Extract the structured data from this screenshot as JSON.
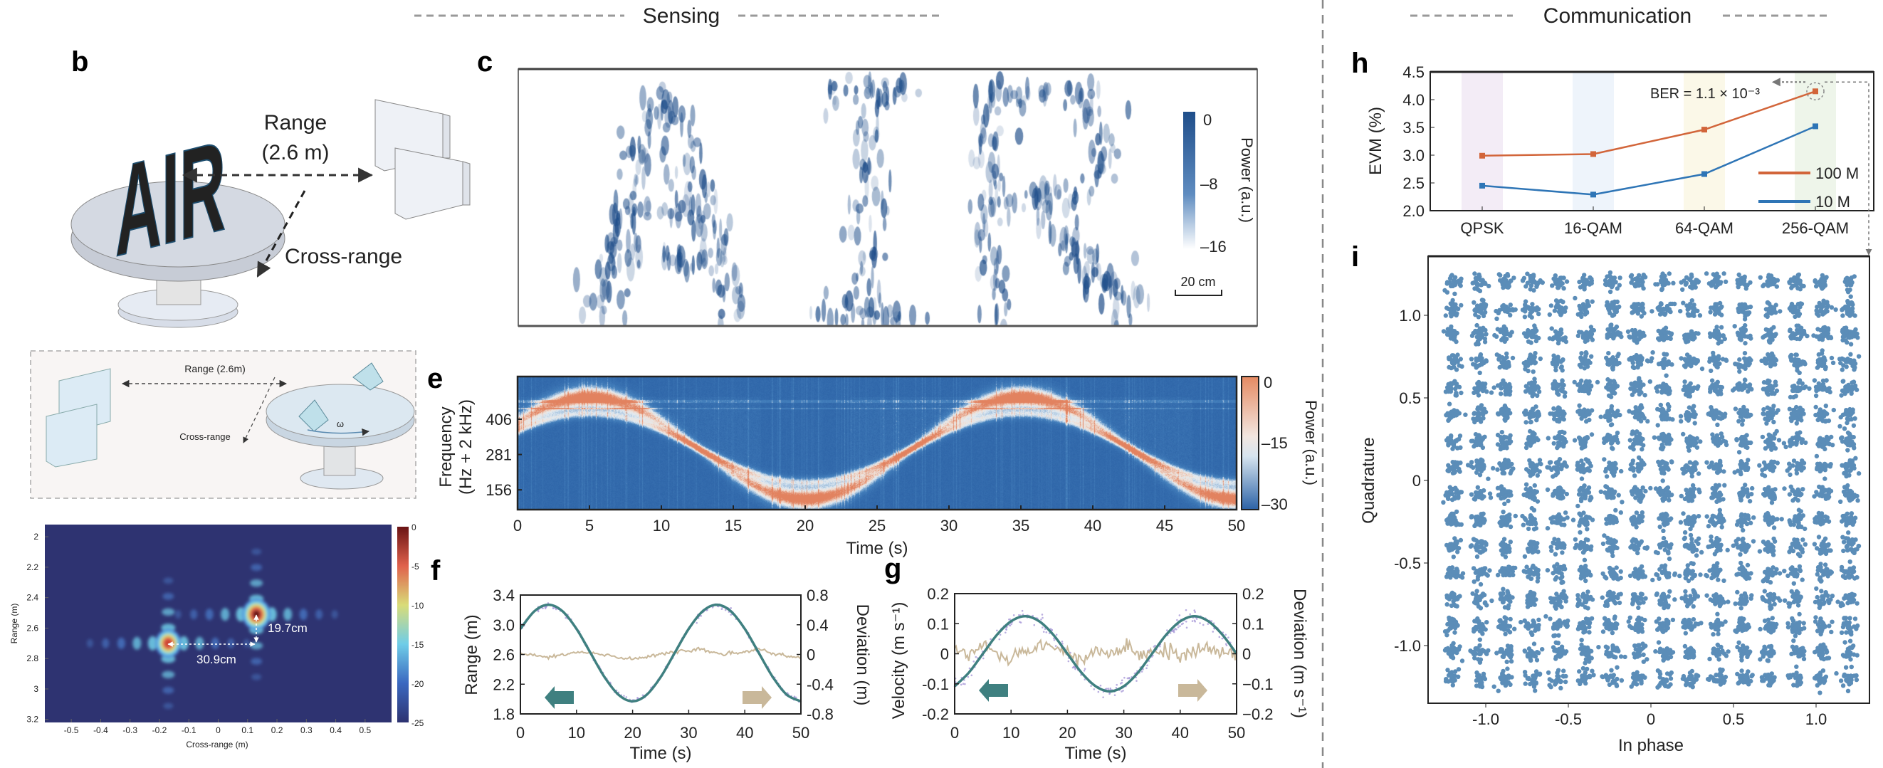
{
  "header": {
    "sensing": "Sensing",
    "communication": "Communication"
  },
  "panel_labels": {
    "b": "b",
    "c": "c",
    "e": "e",
    "f": "f",
    "g": "g",
    "h": "h",
    "i": "i"
  },
  "illustration_b": {
    "range_label": "Range",
    "range_value": "(2.6 m)",
    "cross_range_label": "Cross-range",
    "target_letters": "AIR"
  },
  "illustration_inset": {
    "range_label": "Range  (2.6m)",
    "cross_range_label": "Cross-range",
    "rotation_symbol": "ω"
  },
  "colors": {
    "fit_line": "#3f8080",
    "measured_points": "#a99ad8",
    "deviation": "#c9b89a",
    "series_100M": "#d2653a",
    "series_10M": "#2e75b6",
    "constellation": "#5b8db8",
    "c_map": "#1f4e8a"
  },
  "chart_data": [
    {
      "id": "range_cross_range_map",
      "type": "heatmap",
      "xlabel": "Cross-range (m)",
      "ylabel": "Range (m)",
      "xlim": [
        -0.59,
        0.59
      ],
      "ylim": [
        1.92,
        3.22
      ],
      "xticks": [
        "-0.5",
        "-0.4",
        "-0.3",
        "-0.2",
        "-0.1",
        "0",
        "0.1",
        "0.2",
        "0.3",
        "0.4",
        "0.5"
      ],
      "yticks": [
        "2",
        "2.2",
        "2.4",
        "2.6",
        "2.8",
        "3",
        "3.2"
      ],
      "colorbar": {
        "range": [
          -25,
          0
        ],
        "ticks": [
          "0",
          "-5",
          "-10",
          "-15",
          "-20",
          "-25"
        ]
      },
      "targets": [
        {
          "cross_range": -0.17,
          "range": 2.7,
          "peak_db": -3
        },
        {
          "cross_range": 0.13,
          "range": 2.51,
          "peak_db": 0
        }
      ],
      "annotations": {
        "range_separation": "19.7cm",
        "cross_range_separation": "30.9cm"
      }
    },
    {
      "id": "c",
      "type": "heatmap",
      "content": "AIR",
      "colorbar": {
        "range": [
          -16,
          0
        ],
        "ticks": [
          "0",
          "–8",
          "–16"
        ],
        "label": "Power (a.u.)"
      },
      "scale_bar": "20 cm"
    },
    {
      "id": "e",
      "type": "heatmap",
      "xlabel": "Time (s)",
      "ylabel": [
        "Frequency",
        "(Hz + 2 kHz)"
      ],
      "xlim": [
        0,
        50
      ],
      "ylim": [
        86,
        557
      ],
      "xticks": [
        "0",
        "5",
        "10",
        "15",
        "20",
        "25",
        "30",
        "35",
        "40",
        "45",
        "50"
      ],
      "yticks": [
        406,
        281,
        156
      ],
      "ridge": {
        "center_hz": 305,
        "amplitude_hz": 180,
        "period_s": 30,
        "peak_time_s": 5
      },
      "colorbar": {
        "range": [
          -30,
          0
        ],
        "ticks": [
          "0",
          "–15",
          "–30"
        ],
        "label": "Power (a.u.)"
      }
    },
    {
      "id": "f",
      "type": "line",
      "xlabel": "Time (s)",
      "ylabel": "Range (m)",
      "ylabel_right": "Deviation (m)",
      "xlim": [
        0,
        50
      ],
      "ylim": [
        1.8,
        3.4
      ],
      "ylim_right": [
        -0.8,
        0.8
      ],
      "xticks": [
        "0",
        "10",
        "20",
        "30",
        "40",
        "50"
      ],
      "yticks": [
        "3.4",
        "3.0",
        "2.6",
        "2.2",
        "1.8"
      ],
      "yticks_right": [
        "0.8",
        "0.4",
        "0",
        "-0.4",
        "-0.8"
      ],
      "x": [
        0,
        2.5,
        5,
        7.5,
        10,
        12.5,
        15,
        17.5,
        20,
        22.5,
        25,
        27.5,
        30,
        32.5,
        35,
        37.5,
        40,
        42.5,
        45,
        47.5,
        50
      ],
      "series": [
        {
          "name": "Range",
          "axis": "left",
          "values": [
            2.945,
            3.183,
            3.27,
            3.183,
            2.945,
            2.62,
            2.295,
            2.057,
            1.97,
            2.057,
            2.295,
            2.62,
            2.945,
            3.183,
            3.27,
            3.183,
            2.945,
            2.62,
            2.295,
            2.057,
            1.97
          ]
        },
        {
          "name": "Deviation",
          "axis": "right",
          "values": [
            0.0,
            -0.02,
            -0.03,
            -0.01,
            0.03,
            0.02,
            -0.01,
            -0.04,
            -0.06,
            -0.03,
            0.01,
            0.04,
            0.05,
            0.06,
            0.02,
            0.0,
            0.03,
            0.08,
            0.01,
            -0.02,
            -0.05
          ]
        }
      ]
    },
    {
      "id": "g",
      "type": "line",
      "xlabel": "Time (s)",
      "ylabel": "Velocity (m s⁻¹)",
      "ylabel_right": "Deviation (m s⁻¹)",
      "xlim": [
        0,
        50
      ],
      "ylim": [
        -0.2,
        0.2
      ],
      "ylim_right": [
        -0.2,
        0.2
      ],
      "xticks": [
        "0",
        "10",
        "20",
        "30",
        "40",
        "50"
      ],
      "yticks": [
        "0.2",
        "0.1",
        "0",
        "-0.1",
        "-0.2"
      ],
      "yticks_right": [
        "0.2",
        "0.1",
        "0",
        "−0.1",
        "−0.2"
      ],
      "x": [
        0,
        2.5,
        5,
        7.5,
        10,
        12.5,
        15,
        17.5,
        20,
        22.5,
        25,
        27.5,
        30,
        32.5,
        35,
        37.5,
        40,
        42.5,
        45,
        47.5,
        50
      ],
      "series": [
        {
          "name": "Velocity",
          "axis": "left",
          "values": [
            -0.108,
            -0.063,
            0,
            0.063,
            0.108,
            0.125,
            0.108,
            0.063,
            0,
            -0.063,
            -0.108,
            -0.125,
            -0.108,
            -0.063,
            0,
            0.063,
            0.108,
            0.125,
            0.108,
            0.063,
            0
          ]
        },
        {
          "name": "Deviation",
          "axis": "right",
          "values": [
            0.02,
            -0.01,
            0.03,
            0.0,
            -0.02,
            0.01,
            0.03,
            0.02,
            0.0,
            -0.02,
            0.01,
            -0.01,
            0.02,
            0.0,
            0.01,
            0.02,
            -0.01,
            0.01,
            0.02,
            0.0,
            0.01
          ]
        }
      ]
    },
    {
      "id": "h",
      "type": "line",
      "ylabel": "EVM (%)",
      "ylim": [
        2.0,
        4.5
      ],
      "yticks": [
        "4.5",
        "4.0",
        "3.5",
        "3.0",
        "2.5",
        "2.0"
      ],
      "categories": [
        "QPSK",
        "16-QAM",
        "64-QAM",
        "256-QAM"
      ],
      "series": [
        {
          "name": "100 M",
          "values": [
            2.99,
            3.02,
            3.46,
            4.15
          ]
        },
        {
          "name": "10 M",
          "values": [
            2.45,
            2.29,
            2.66,
            3.52
          ]
        }
      ],
      "legend": "right",
      "annotation": "BER = 1.1 × 10⁻³"
    },
    {
      "id": "i",
      "type": "scatter",
      "xlabel": "In phase",
      "ylabel": "Quadrature",
      "xlim": [
        -1.35,
        1.35
      ],
      "ylim": [
        -1.35,
        1.35
      ],
      "xticks": [
        "-1.0",
        "-0.5",
        "0",
        "0.5",
        "1.0"
      ],
      "yticks": [
        "1.0",
        "0.5",
        "0",
        "-0.5",
        "-1.0"
      ],
      "constellation": "256-QAM",
      "levels_per_axis": 16,
      "max_level": 1.2
    }
  ]
}
